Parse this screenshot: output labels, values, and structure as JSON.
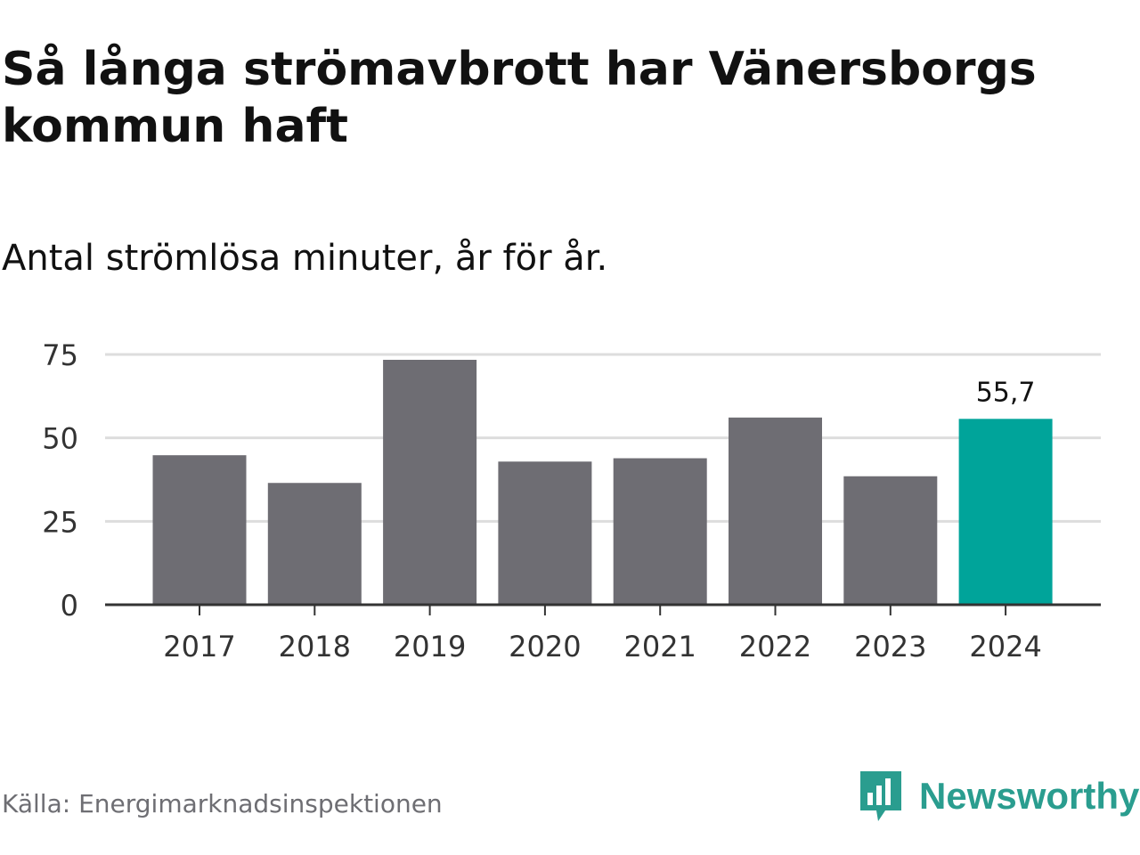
{
  "title": "Så långa strömavbrott har Vänersborgs kommun haft",
  "subtitle": "Antal strömlösa minuter, år för år.",
  "source": "Källa: Energimarknadsinspektionen",
  "brand": {
    "name": "Newsworthy",
    "icon": "newsworthy-logo-icon",
    "color": "#2a9d8f"
  },
  "colors": {
    "bar": "#6e6d73",
    "highlight": "#00a49a",
    "grid": "#dddddd",
    "axis": "#333333"
  },
  "chart_data": {
    "type": "bar",
    "title": "Så långa strömavbrott har Vänersborgs kommun haft",
    "subtitle": "Antal strömlösa minuter, år för år.",
    "categories": [
      "2017",
      "2018",
      "2019",
      "2020",
      "2021",
      "2022",
      "2023",
      "2024"
    ],
    "values": [
      44.8,
      36.5,
      73.4,
      42.9,
      43.9,
      56.1,
      38.5,
      55.7
    ],
    "highlight_index": 7,
    "highlight_label": "55,7",
    "yticks": [
      0,
      25,
      50,
      75
    ],
    "ylim": [
      0,
      75
    ],
    "xlabel": "",
    "ylabel": "",
    "grid": true
  }
}
